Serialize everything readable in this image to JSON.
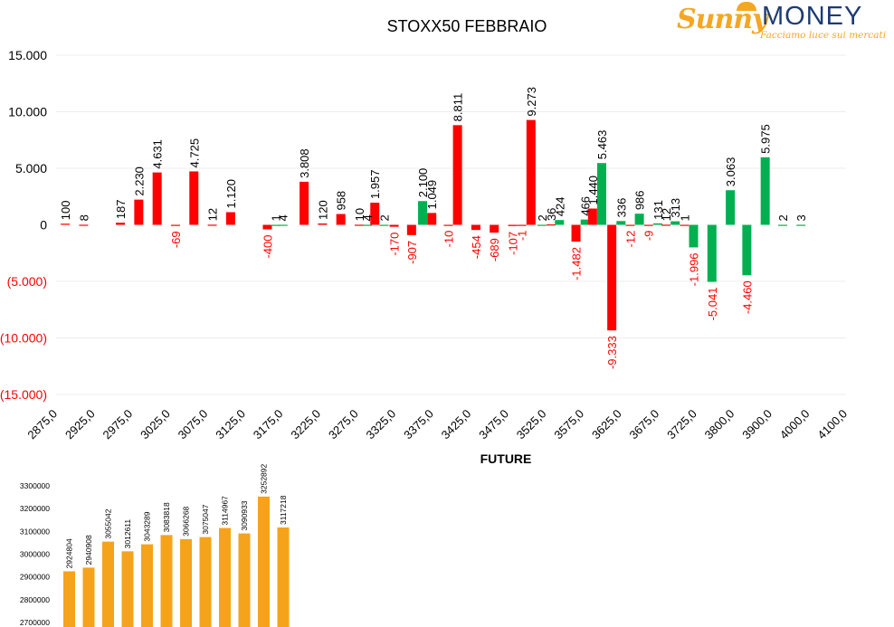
{
  "logo": {
    "brand_left": "Sunny",
    "brand_right": "MONEY",
    "tagline": "Facciamo luce sui mercati"
  },
  "colors": {
    "positive_red": "#ff0000",
    "positive_green": "#00b050",
    "negative_label": "#ff0000",
    "label": "#000000",
    "future_bar": "#f5a31a",
    "grid": "#ececec"
  },
  "chart_data": [
    {
      "type": "bar",
      "title": "STOXX50 FEBBRAIO",
      "ylim": [
        -15000,
        15000
      ],
      "y_ticks": [
        "15.000",
        "10.000",
        "5.000",
        "0",
        "(5.000)",
        "(10.000)",
        "(15.000)"
      ],
      "y_tick_values": [
        15000,
        10000,
        5000,
        0,
        -5000,
        -10000,
        -15000
      ],
      "x_ticks": [
        "2875,0",
        "2925,0",
        "2975,0",
        "3025,0",
        "3075,0",
        "3125,0",
        "3175,0",
        "3225,0",
        "3275,0",
        "3325,0",
        "3375,0",
        "3425,0",
        "3475,0",
        "3525,0",
        "3575,0",
        "3625,0",
        "3675,0",
        "3725,0",
        "3800,0",
        "3900,0",
        "4000,0",
        "4100,0"
      ],
      "grid": true,
      "legend": "none",
      "bars": [
        {
          "slot": 0,
          "value": 100,
          "label": "100",
          "series": "red"
        },
        {
          "slot": 1,
          "value": 8,
          "label": "8",
          "series": "red"
        },
        {
          "slot": 3,
          "value": 187,
          "label": "187",
          "series": "red"
        },
        {
          "slot": 4,
          "value": 2230,
          "label": "2.230",
          "series": "red"
        },
        {
          "slot": 5,
          "value": 4631,
          "label": "4.631",
          "series": "red"
        },
        {
          "slot": 6,
          "value": -69,
          "label": "-69",
          "series": "red"
        },
        {
          "slot": 7,
          "value": 4725,
          "label": "4.725",
          "series": "red"
        },
        {
          "slot": 8,
          "value": 12,
          "label": "12",
          "series": "red"
        },
        {
          "slot": 9,
          "value": 1120,
          "label": "1.120",
          "series": "red"
        },
        {
          "slot": 11,
          "value": -400,
          "label": "-400",
          "series": "red"
        },
        {
          "slot": 11.45,
          "value": 1,
          "label": "1",
          "series": "green"
        },
        {
          "slot": 11.85,
          "value": 4,
          "label": "4",
          "series": "green"
        },
        {
          "slot": 13,
          "value": 3808,
          "label": "3.808",
          "series": "red"
        },
        {
          "slot": 14,
          "value": 120,
          "label": "120",
          "series": "red"
        },
        {
          "slot": 15,
          "value": 958,
          "label": "958",
          "series": "red"
        },
        {
          "slot": 16,
          "value": 10,
          "label": "10",
          "series": "red"
        },
        {
          "slot": 16.45,
          "value": 4,
          "label": "4",
          "series": "green"
        },
        {
          "slot": 16.85,
          "value": 1957,
          "label": "1.957",
          "series": "red"
        },
        {
          "slot": 17.35,
          "value": 2,
          "label": "2",
          "series": "green"
        },
        {
          "slot": 17.9,
          "value": -170,
          "label": "-170",
          "series": "red"
        },
        {
          "slot": 18.85,
          "value": -907,
          "label": "-907",
          "series": "red"
        },
        {
          "slot": 19.45,
          "value": 2100,
          "label": "2.100",
          "series": "green"
        },
        {
          "slot": 19.95,
          "value": 1049,
          "label": "1.049",
          "series": "red"
        },
        {
          "slot": 20.85,
          "value": -10,
          "label": "-10",
          "series": "red"
        },
        {
          "slot": 21.35,
          "value": 8811,
          "label": "8.811",
          "series": "red"
        },
        {
          "slot": 22.35,
          "value": -454,
          "label": "-454",
          "series": "red"
        },
        {
          "slot": 23.35,
          "value": -689,
          "label": "-689",
          "series": "red"
        },
        {
          "slot": 24.35,
          "value": -107,
          "label": "-107",
          "series": "red"
        },
        {
          "slot": 24.85,
          "value": -1,
          "label": "-1",
          "series": "red"
        },
        {
          "slot": 25.35,
          "value": 9273,
          "label": "9.273",
          "series": "red"
        },
        {
          "slot": 25.95,
          "value": 2,
          "label": "2",
          "series": "green"
        },
        {
          "slot": 26.45,
          "value": 36,
          "label": "36",
          "series": "red"
        },
        {
          "slot": 26.9,
          "value": 424,
          "label": "424",
          "series": "green"
        },
        {
          "slot": 27.8,
          "value": -1482,
          "label": "-1.482",
          "series": "red"
        },
        {
          "slot": 28.3,
          "value": 466,
          "label": "466",
          "series": "green"
        },
        {
          "slot": 28.7,
          "value": 1440,
          "label": "1.440",
          "series": "red"
        },
        {
          "slot": 29.2,
          "value": 5463,
          "label": "5.463",
          "series": "green"
        },
        {
          "slot": 29.75,
          "value": -9333,
          "label": "-9.333",
          "series": "red"
        },
        {
          "slot": 30.25,
          "value": 336,
          "label": "336",
          "series": "green"
        },
        {
          "slot": 30.75,
          "value": -12,
          "label": "-12",
          "series": "red"
        },
        {
          "slot": 31.25,
          "value": 986,
          "label": "986",
          "series": "green"
        },
        {
          "slot": 31.75,
          "value": -9,
          "label": "-9",
          "series": "red"
        },
        {
          "slot": 32.25,
          "value": 131,
          "label": "131",
          "series": "green"
        },
        {
          "slot": 32.7,
          "value": 12,
          "label": "12",
          "series": "red"
        },
        {
          "slot": 33.2,
          "value": 313,
          "label": "313",
          "series": "green"
        },
        {
          "slot": 33.7,
          "value": 1,
          "label": "1",
          "series": "red"
        },
        {
          "slot": 34.2,
          "value": -1996,
          "label": "-1.996",
          "series": "green"
        },
        {
          "slot": 35.2,
          "value": -5041,
          "label": "-5.041",
          "series": "green"
        },
        {
          "slot": 36.2,
          "value": 3063,
          "label": "3.063",
          "series": "green"
        },
        {
          "slot": 37.1,
          "value": -4460,
          "label": "-4.460",
          "series": "green"
        },
        {
          "slot": 38.1,
          "value": 5975,
          "label": "5.975",
          "series": "green"
        },
        {
          "slot": 39.05,
          "value": 2,
          "label": "2",
          "series": "green"
        },
        {
          "slot": 40.05,
          "value": 3,
          "label": "3",
          "series": "green"
        }
      ]
    },
    {
      "type": "bar",
      "title": "FUTURE",
      "ylim": [
        2700000,
        3300000
      ],
      "y_ticks": [
        "3300000",
        "3200000",
        "3100000",
        "3000000",
        "2900000",
        "2800000",
        "2700000"
      ],
      "y_tick_values": [
        3300000,
        3200000,
        3100000,
        3000000,
        2900000,
        2800000,
        2700000
      ],
      "grid": false,
      "legend": "none",
      "values": [
        2924804,
        2940908,
        3055042,
        3012611,
        3043289,
        3083818,
        3066268,
        3075047,
        3114967,
        3090933,
        3252892,
        3117218
      ],
      "labels": [
        "2924804",
        "2940908",
        "3055042",
        "3012611",
        "3043289",
        "3083818",
        "3066268",
        "3075047",
        "3114967",
        "3090933",
        "3252892",
        "3117218"
      ]
    }
  ]
}
